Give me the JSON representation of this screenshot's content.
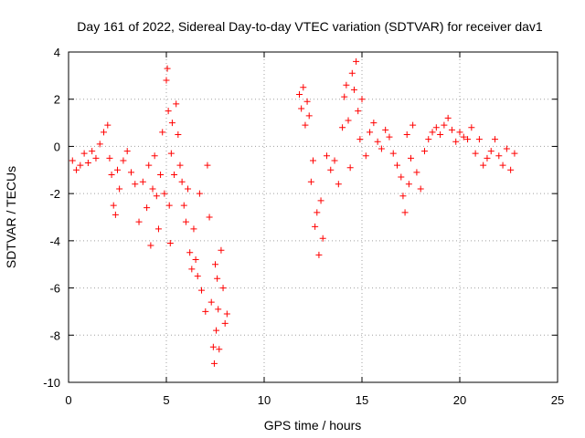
{
  "chart_data": {
    "type": "scatter",
    "title": "Day 161 of 2022, Sidereal Day-to-day VTEC variation (SDTVAR) for receiver dav1",
    "xlabel": "GPS time / hours",
    "ylabel": "SDTVAR / TECUs",
    "xlim": [
      0,
      25
    ],
    "ylim": [
      -10,
      4
    ],
    "xticks": [
      0,
      5,
      10,
      15,
      20,
      25
    ],
    "xtick_labels": [
      "0",
      "5",
      "10",
      "15",
      "20",
      "25"
    ],
    "yticks": [
      4,
      2,
      0,
      -2,
      -4,
      -6,
      -8,
      -10
    ],
    "ytick_labels": [
      "4",
      "2",
      "0",
      "-2",
      "-4",
      "-6",
      "-8",
      "-10"
    ],
    "grid": true,
    "marker": "+",
    "color": "#ff0000",
    "series": [
      {
        "name": "SDTVAR",
        "x": [
          0.2,
          0.4,
          0.6,
          0.8,
          1.0,
          1.2,
          1.4,
          1.6,
          1.8,
          2.0,
          2.1,
          2.2,
          2.3,
          2.4,
          2.5,
          2.6,
          2.8,
          3.0,
          3.2,
          3.4,
          3.6,
          3.8,
          4.0,
          4.1,
          4.2,
          4.3,
          4.4,
          4.5,
          4.6,
          4.7,
          4.8,
          4.9,
          5.0,
          5.05,
          5.1,
          5.15,
          5.2,
          5.25,
          5.3,
          5.4,
          5.5,
          5.6,
          5.7,
          5.8,
          5.9,
          6.0,
          6.1,
          6.2,
          6.3,
          6.4,
          6.5,
          6.6,
          6.7,
          6.8,
          7.0,
          7.1,
          7.2,
          7.3,
          7.4,
          7.45,
          7.5,
          7.55,
          7.6,
          7.65,
          7.7,
          7.8,
          7.9,
          8.0,
          8.1,
          11.8,
          11.9,
          12.0,
          12.1,
          12.2,
          12.3,
          12.4,
          12.5,
          12.6,
          12.7,
          12.8,
          12.9,
          13.0,
          13.2,
          13.4,
          13.6,
          13.8,
          14.0,
          14.1,
          14.2,
          14.3,
          14.4,
          14.5,
          14.6,
          14.7,
          14.8,
          14.9,
          15.0,
          15.2,
          15.4,
          15.6,
          15.8,
          16.0,
          16.2,
          16.4,
          16.6,
          16.8,
          17.0,
          17.1,
          17.2,
          17.3,
          17.4,
          17.5,
          17.6,
          17.8,
          18.0,
          18.2,
          18.4,
          18.6,
          18.8,
          19.0,
          19.2,
          19.4,
          19.6,
          19.8,
          20.0,
          20.2,
          20.4,
          20.6,
          20.8,
          21.0,
          21.2,
          21.4,
          21.6,
          21.8,
          22.0,
          22.2,
          22.4,
          22.6,
          22.8
        ],
        "y": [
          -0.6,
          -1.0,
          -0.8,
          -0.3,
          -0.7,
          -0.2,
          -0.5,
          0.1,
          0.6,
          0.9,
          -0.5,
          -1.2,
          -2.5,
          -2.9,
          -1.0,
          -1.8,
          -0.6,
          -0.2,
          -1.1,
          -1.6,
          -3.2,
          -1.5,
          -2.6,
          -0.8,
          -4.2,
          -1.8,
          -0.4,
          -2.1,
          -3.5,
          -1.2,
          0.6,
          -2.0,
          2.8,
          3.3,
          1.5,
          -2.5,
          -4.1,
          -0.3,
          1.0,
          -1.2,
          1.8,
          0.5,
          -0.8,
          -1.5,
          -2.5,
          -3.2,
          -1.8,
          -4.5,
          -5.2,
          -3.5,
          -4.8,
          -5.5,
          -2.0,
          -6.1,
          -7.0,
          -0.8,
          -3.0,
          -6.6,
          -8.5,
          -9.2,
          -5.0,
          -7.8,
          -5.6,
          -6.9,
          -8.6,
          -4.4,
          -6.0,
          -7.5,
          -7.1,
          2.2,
          1.6,
          2.5,
          0.9,
          1.9,
          1.3,
          -1.5,
          -0.6,
          -3.4,
          -2.8,
          -4.6,
          -2.3,
          -3.9,
          -0.4,
          -1.0,
          -0.6,
          -1.6,
          0.8,
          2.1,
          2.6,
          1.1,
          -0.9,
          3.1,
          2.4,
          3.6,
          1.5,
          0.3,
          2.0,
          -0.4,
          0.6,
          1.0,
          0.2,
          -0.1,
          0.7,
          0.4,
          -0.3,
          -0.8,
          -1.3,
          -2.1,
          -2.8,
          0.5,
          -1.6,
          -0.5,
          0.9,
          -1.1,
          -1.8,
          -0.2,
          0.3,
          0.6,
          0.8,
          0.5,
          0.9,
          1.2,
          0.7,
          0.2,
          0.6,
          0.4,
          0.3,
          0.8,
          -0.3,
          0.3,
          -0.8,
          -0.5,
          -0.2,
          0.3,
          -0.4,
          -0.8,
          -0.1,
          -1.0,
          -0.3
        ]
      }
    ]
  }
}
